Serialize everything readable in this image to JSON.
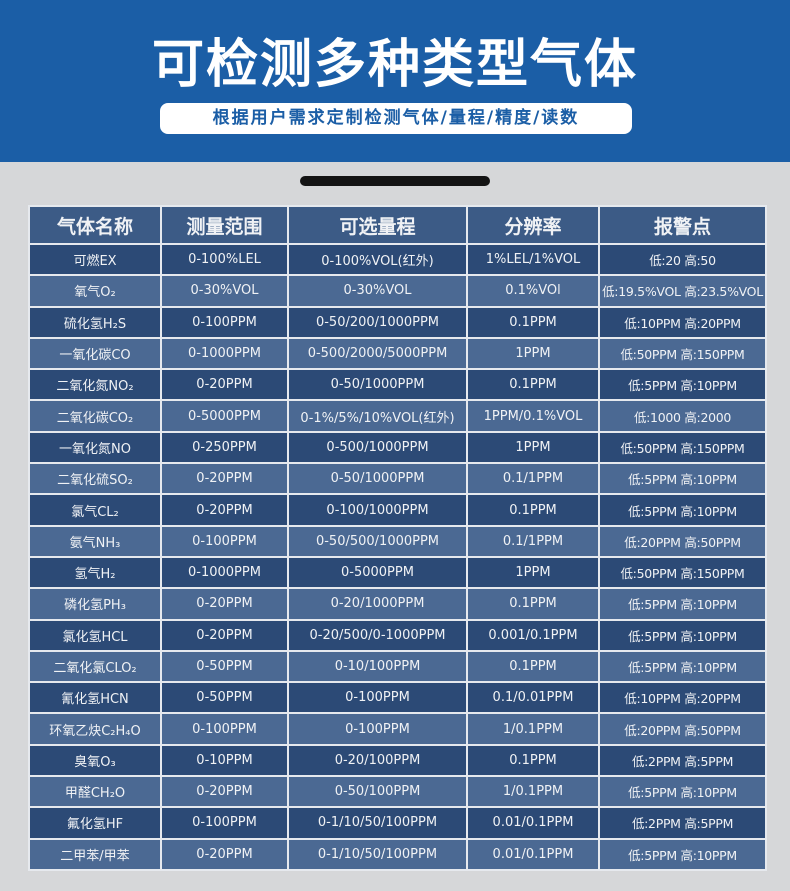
{
  "header": {
    "title": "可检测多种类型气体",
    "subtitle": "根据用户需求定制检测气体/量程/精度/读数",
    "banner_color": "#1b5ea6"
  },
  "table": {
    "columns": [
      "气体名称",
      "测量范围",
      "可选量程",
      "分辨率",
      "报警点"
    ],
    "rows": [
      [
        "可燃EX",
        "0-100%LEL",
        "0-100%VOL(红外)",
        "1%LEL/1%VOL",
        "低:20 高:50"
      ],
      [
        "氧气O₂",
        "0-30%VOL",
        "0-30%VOL",
        "0.1%VOl",
        "低:19.5%VOL 高:23.5%VOL"
      ],
      [
        "硫化氢H₂S",
        "0-100PPM",
        "0-50/200/1000PPM",
        "0.1PPM",
        "低:10PPM 高:20PPM"
      ],
      [
        "一氧化碳CO",
        "0-1000PPM",
        "0-500/2000/5000PPM",
        "1PPM",
        "低:50PPM 高:150PPM"
      ],
      [
        "二氧化氮NO₂",
        "0-20PPM",
        "0-50/1000PPM",
        "0.1PPM",
        "低:5PPM 高:10PPM"
      ],
      [
        "二氧化碳CO₂",
        "0-5000PPM",
        "0-1%/5%/10%VOL(红外)",
        "1PPM/0.1%VOL",
        "低:1000 高:2000"
      ],
      [
        "一氧化氮NO",
        "0-250PPM",
        "0-500/1000PPM",
        "1PPM",
        "低:50PPM 高:150PPM"
      ],
      [
        "二氧化硫SO₂",
        "0-20PPM",
        "0-50/1000PPM",
        "0.1/1PPM",
        "低:5PPM 高:10PPM"
      ],
      [
        "氯气CL₂",
        "0-20PPM",
        "0-100/1000PPM",
        "0.1PPM",
        "低:5PPM 高:10PPM"
      ],
      [
        "氨气NH₃",
        "0-100PPM",
        "0-50/500/1000PPM",
        "0.1/1PPM",
        "低:20PPM 高:50PPM"
      ],
      [
        "氢气H₂",
        "0-1000PPM",
        "0-5000PPM",
        "1PPM",
        "低:50PPM 高:150PPM"
      ],
      [
        "磷化氢PH₃",
        "0-20PPM",
        "0-20/1000PPM",
        "0.1PPM",
        "低:5PPM 高:10PPM"
      ],
      [
        "氯化氢HCL",
        "0-20PPM",
        "0-20/500/0-1000PPM",
        "0.001/0.1PPM",
        "低:5PPM 高:10PPM"
      ],
      [
        "二氧化氯CLO₂",
        "0-50PPM",
        "0-10/100PPM",
        "0.1PPM",
        "低:5PPM 高:10PPM"
      ],
      [
        "氰化氢HCN",
        "0-50PPM",
        "0-100PPM",
        "0.1/0.01PPM",
        "低:10PPM 高:20PPM"
      ],
      [
        "环氧乙炔C₂H₄O",
        "0-100PPM",
        "0-100PPM",
        "1/0.1PPM",
        "低:20PPM 高:50PPM"
      ],
      [
        "臭氧O₃",
        "0-10PPM",
        "0-20/100PPM",
        "0.1PPM",
        "低:2PPM 高:5PPM"
      ],
      [
        "甲醛CH₂O",
        "0-20PPM",
        "0-50/100PPM",
        "1/0.1PPM",
        "低:5PPM 高:10PPM"
      ],
      [
        "氟化氢HF",
        "0-100PPM",
        "0-1/10/50/100PPM",
        "0.01/0.1PPM",
        "低:2PPM 高:5PPM"
      ],
      [
        "二甲苯/甲苯",
        "0-20PPM",
        "0-1/10/50/100PPM",
        "0.01/0.1PPM",
        "低:5PPM 高:10PPM"
      ]
    ]
  }
}
